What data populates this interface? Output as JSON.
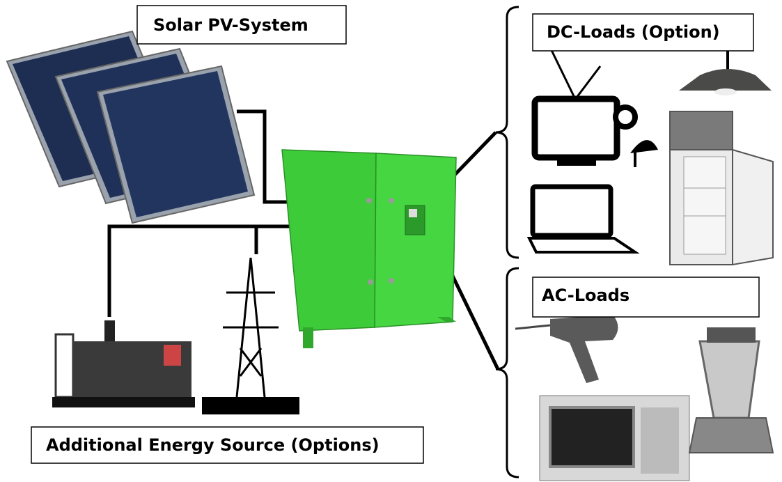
{
  "labels": {
    "solar": "Solar PV-System",
    "dc_loads": "DC-Loads (Option)",
    "ac_loads": "AC-Loads",
    "additional": "Additional Energy Source (Options)"
  }
}
